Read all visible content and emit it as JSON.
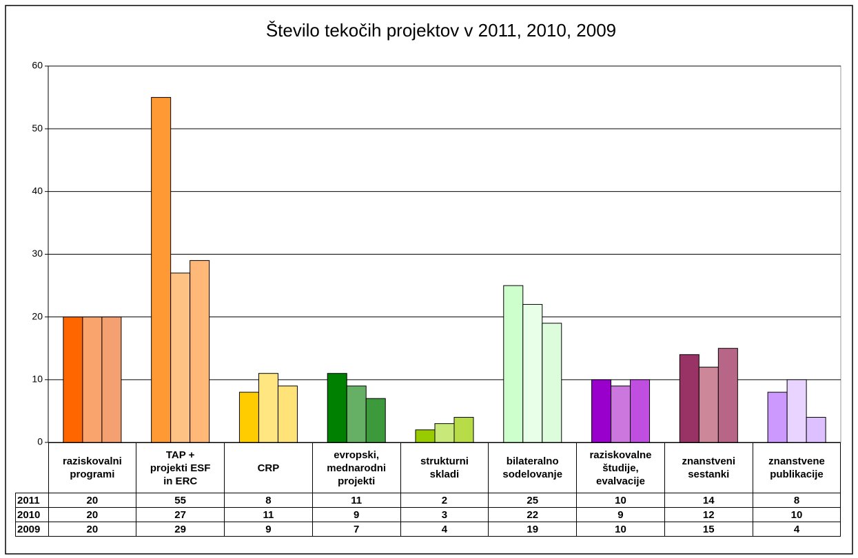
{
  "chart_data": {
    "type": "bar",
    "title": "Število tekočih projektov v 2011, 2010, 2009",
    "categories": [
      "raziskovalni\nprogrami",
      "TAP +\nprojekti ESF\nin ERC",
      "CRP",
      "evropski,\nmednarodni\nprojekti",
      "strukturni\nskladi",
      "bilateralno\nsodelovanje",
      "raziskovalne\nštudije,\nevalvacije",
      "znanstveni\nsestanki",
      "znanstvene\npublikacije"
    ],
    "series": [
      {
        "name": "2011",
        "values": [
          20,
          55,
          8,
          11,
          2,
          25,
          10,
          14,
          8
        ],
        "colors": [
          "#ff6600",
          "#ff9933",
          "#ffcc00",
          "#008000",
          "#99cc00",
          "#ccffcc",
          "#9900cc",
          "#993366",
          "#cc99ff"
        ]
      },
      {
        "name": "2010",
        "values": [
          20,
          27,
          11,
          9,
          3,
          22,
          9,
          12,
          10
        ],
        "colors": [
          "#f8a46c",
          "#ffc285",
          "#ffe680",
          "#66b066",
          "#c8e87a",
          "#e8ffe8",
          "#cc77dd",
          "#cc8899",
          "#e8d4ff"
        ]
      },
      {
        "name": "2009",
        "values": [
          20,
          29,
          9,
          7,
          4,
          19,
          10,
          15,
          4
        ],
        "colors": [
          "#f5a070",
          "#ffb878",
          "#ffe278",
          "#3c9a3c",
          "#b8dc48",
          "#dcfcdc",
          "#c04ee0",
          "#b86688",
          "#dcc0ff"
        ]
      }
    ],
    "ylim": [
      0,
      60
    ],
    "yticks": [
      0,
      10,
      20,
      30,
      40,
      50,
      60
    ],
    "grid": true
  }
}
